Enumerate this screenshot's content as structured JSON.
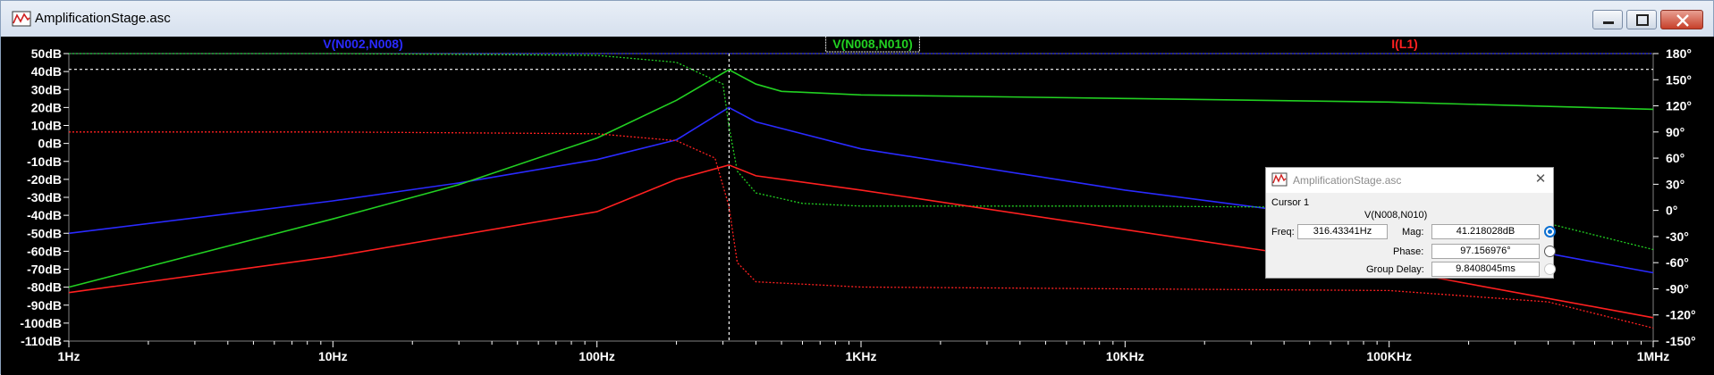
{
  "window": {
    "title": "AmplificationStage.asc",
    "icons": {
      "app": "waveform-app-icon",
      "minimize": "minimize-icon",
      "maximize": "maximize-icon",
      "close": "close-icon"
    }
  },
  "plot": {
    "traces": [
      {
        "label": "V(N002,N008)",
        "color": "#2a2aff",
        "selected": false
      },
      {
        "label": "V(N008,N010)",
        "color": "#22d022",
        "selected": true
      },
      {
        "label": "I(L1)",
        "color": "#ff2020",
        "selected": false
      }
    ],
    "left_ticks": [
      "50dB",
      "40dB",
      "30dB",
      "20dB",
      "10dB",
      "0dB",
      "-10dB",
      "-20dB",
      "-30dB",
      "-40dB",
      "-50dB",
      "-60dB",
      "-70dB",
      "-80dB",
      "-90dB",
      "-100dB",
      "-110dB"
    ],
    "right_ticks": [
      "180°",
      "150°",
      "120°",
      "90°",
      "60°",
      "30°",
      "0°",
      "-30°",
      "-60°",
      "-90°",
      "-120°",
      "-150°"
    ],
    "x_ticks": [
      "1Hz",
      "10Hz",
      "100Hz",
      "1KHz",
      "10KHz",
      "100KHz",
      "1MHz"
    ],
    "colors": {
      "background": "#000000",
      "axes_text": "#ffffff",
      "cursor": "#ffffff"
    },
    "chart_data": {
      "type": "line",
      "x_scale": "log",
      "xlim": [
        1,
        1000000
      ],
      "ylim_left_dB": [
        -110,
        50
      ],
      "ylim_right_deg": [
        -150,
        180
      ],
      "grid": false,
      "cursor": {
        "frequency_hz": 316.43341,
        "magnitude_dB": 41.218028
      },
      "series": [
        {
          "name": "V(N002,N008)",
          "kind": "magnitude",
          "axis": "dB",
          "x": [
            1,
            10,
            30,
            100,
            200,
            316,
            400,
            1000,
            10000,
            100000,
            1000000
          ],
          "y": [
            -50,
            -32,
            -22,
            -9,
            2,
            20,
            12,
            -3,
            -26,
            -45,
            -72
          ]
        },
        {
          "name": "V(N002,N008)",
          "kind": "phase",
          "axis": "deg",
          "x": [
            1,
            100000,
            1000000
          ],
          "y": [
            180,
            180,
            180
          ]
        },
        {
          "name": "V(N008,N010)",
          "kind": "magnitude",
          "axis": "dB",
          "x": [
            1,
            10,
            30,
            100,
            200,
            316,
            400,
            500,
            1000,
            10000,
            100000,
            1000000
          ],
          "y": [
            -80,
            -42,
            -23,
            3,
            24,
            41,
            33,
            29,
            27,
            25,
            23,
            19
          ]
        },
        {
          "name": "V(N008,N010)",
          "kind": "phase",
          "axis": "deg",
          "x": [
            1,
            10,
            100,
            200,
            300,
            316,
            340,
            400,
            600,
            1000,
            10000,
            100000,
            400000,
            1000000
          ],
          "y": [
            180,
            180,
            178,
            170,
            145,
            97,
            45,
            20,
            8,
            5,
            5,
            3,
            -15,
            -45
          ]
        },
        {
          "name": "I(L1)",
          "kind": "magnitude",
          "axis": "dB",
          "x": [
            1,
            10,
            100,
            200,
            316,
            400,
            1000,
            10000,
            100000,
            1000000
          ],
          "y": [
            -83,
            -63,
            -38,
            -20,
            -12,
            -18,
            -26,
            -48,
            -70,
            -97
          ]
        },
        {
          "name": "I(L1)",
          "kind": "phase",
          "axis": "deg",
          "x": [
            1,
            10,
            100,
            200,
            280,
            316,
            340,
            400,
            1000,
            10000,
            100000,
            400000,
            1000000
          ],
          "y": [
            90,
            90,
            88,
            80,
            60,
            5,
            -60,
            -82,
            -88,
            -90,
            -92,
            -105,
            -135
          ]
        }
      ]
    }
  },
  "cursor_dialog": {
    "title": "AmplificationStage.asc",
    "cursor_label": "Cursor 1",
    "trace_name": "V(N008,N010)",
    "freq_label": "Freq:",
    "freq_value": "316.43341Hz",
    "mag_label": "Mag:",
    "mag_value": "41.218028dB",
    "phase_label": "Phase:",
    "phase_value": "97.156976°",
    "group_delay_label": "Group Delay:",
    "group_delay_value": "9.8408045ms",
    "close_glyph": "✕",
    "icons": {
      "dialog": "cursor-app-icon",
      "close": "close-icon"
    }
  }
}
